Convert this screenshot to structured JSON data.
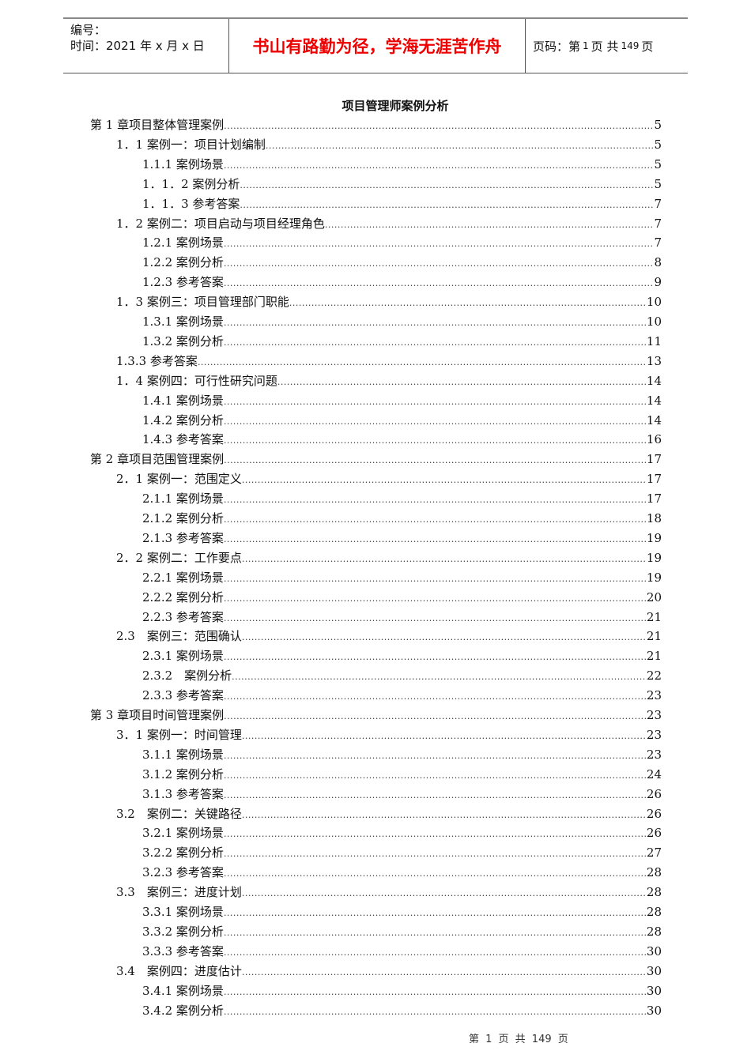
{
  "header": {
    "number_label": "编号：",
    "time_label": "时间：2021 年 x 月 x 日",
    "motto": "书山有路勤为径，学海无涯苦作舟",
    "page_prefix": "页码：第",
    "page_current": "1",
    "page_mid": "页  共",
    "page_total": "149",
    "page_suffix": "页",
    "motto_color": "#e00000"
  },
  "title": "项目管理师案例分析",
  "toc": [
    {
      "text": "第 1 章项目整体管理案例",
      "level": 0,
      "page": "5"
    },
    {
      "text": "1．1 案例一：项目计划编制",
      "level": 1,
      "page": "5"
    },
    {
      "text": "1.1.1 案例场景",
      "level": 2,
      "page": "5"
    },
    {
      "text": "1．1．2 案例分析",
      "level": 2,
      "page": "5"
    },
    {
      "text": "1．1．3 参考答案",
      "level": 2,
      "page": "7"
    },
    {
      "text": "1．2 案例二：项目启动与项目经理角色",
      "level": 1,
      "page": "7"
    },
    {
      "text": "1.2.1 案例场景",
      "level": 2,
      "page": "7"
    },
    {
      "text": "1.2.2 案例分析",
      "level": 2,
      "page": "8"
    },
    {
      "text": "1.2.3 参考答案",
      "level": 2,
      "page": "9"
    },
    {
      "text": "1．3 案例三：项目管理部门职能",
      "level": 1,
      "page": "10"
    },
    {
      "text": "1.3.1 案例场景",
      "level": 2,
      "page": "10"
    },
    {
      "text": "1.3.2 案例分析",
      "level": 2,
      "page": "11"
    },
    {
      "text": "1.3.3 参考答案",
      "level": 1,
      "page": "13"
    },
    {
      "text": "1．4 案例四：可行性研究问题",
      "level": 1,
      "page": "14"
    },
    {
      "text": "1.4.1 案例场景",
      "level": 2,
      "page": "14"
    },
    {
      "text": "1.4.2 案例分析",
      "level": 2,
      "page": "14"
    },
    {
      "text": "1.4.3 参考答案",
      "level": 2,
      "page": "16"
    },
    {
      "text": "第 2 章项目范围管理案例",
      "level": 0,
      "page": "17"
    },
    {
      "text": "2．1 案例一：范围定义",
      "level": 1,
      "page": "17"
    },
    {
      "text": "2.1.1 案例场景",
      "level": 2,
      "page": "17"
    },
    {
      "text": "2.1.2 案例分析",
      "level": 2,
      "page": "18"
    },
    {
      "text": "2.1.3 参考答案",
      "level": 2,
      "page": "19"
    },
    {
      "text": "2．2 案例二：工作要点",
      "level": 1,
      "page": "19"
    },
    {
      "text": "2.2.1 案例场景",
      "level": 2,
      "page": "19"
    },
    {
      "text": "2.2.2 案例分析",
      "level": 2,
      "page": "20"
    },
    {
      "text": "2.2.3 参考答案",
      "level": 2,
      "page": "21"
    },
    {
      "text": "2.3　案例三：范围确认",
      "level": 1,
      "page": "21"
    },
    {
      "text": "2.3.1 案例场景",
      "level": 2,
      "page": "21"
    },
    {
      "text": "2.3.2　案例分析",
      "level": 2,
      "page": "22"
    },
    {
      "text": "2.3.3 参考答案",
      "level": 2,
      "page": "23"
    },
    {
      "text": "第 3 章项目时间管理案例",
      "level": 0,
      "page": "23"
    },
    {
      "text": "3．1 案例一：时间管理",
      "level": 1,
      "page": "23"
    },
    {
      "text": "3.1.1 案例场景",
      "level": 2,
      "page": "23"
    },
    {
      "text": "3.1.2 案例分析",
      "level": 2,
      "page": "24"
    },
    {
      "text": "3.1.3 参考答案",
      "level": 2,
      "page": "26"
    },
    {
      "text": "3.2　案例二：关键路径",
      "level": 1,
      "page": "26"
    },
    {
      "text": "3.2.1 案例场景",
      "level": 2,
      "page": "26"
    },
    {
      "text": "3.2.2 案例分析",
      "level": 2,
      "page": "27"
    },
    {
      "text": "3.2.3 参考答案",
      "level": 2,
      "page": "28"
    },
    {
      "text": "3.3　案例三：进度计划",
      "level": 1,
      "page": "28"
    },
    {
      "text": "3.3.1 案例场景",
      "level": 2,
      "page": "28"
    },
    {
      "text": "3.3.2 案例分析",
      "level": 2,
      "page": "28"
    },
    {
      "text": "3.3.3 参考答案",
      "level": 2,
      "page": "30"
    },
    {
      "text": "3.4　案例四：进度估计",
      "level": 1,
      "page": "30"
    },
    {
      "text": "3.4.1 案例场景",
      "level": 2,
      "page": "30"
    },
    {
      "text": "3.4.2 案例分析",
      "level": 2,
      "page": "30"
    }
  ],
  "footer": "第 1 页 共 149 页"
}
